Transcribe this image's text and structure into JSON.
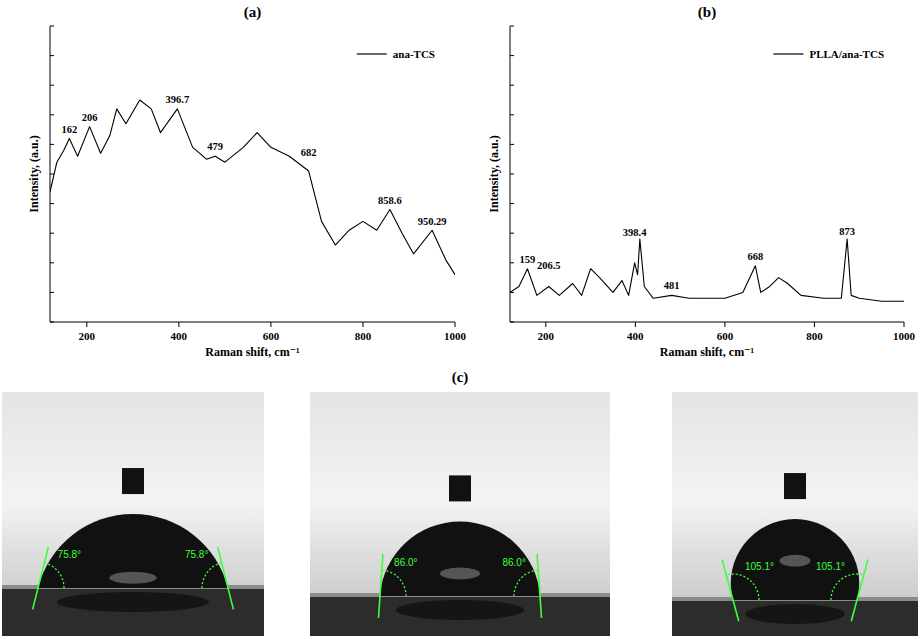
{
  "chart_data": [
    {
      "type": "line",
      "title": "(a)",
      "x_label": "Raman shift, cm⁻¹",
      "y_label": "Intensity, (a.u.)",
      "xlim": [
        120,
        1000
      ],
      "xticks": [
        200,
        400,
        600,
        800,
        1000
      ],
      "ylim": [
        0,
        100
      ],
      "yticks": [
        0,
        10,
        20,
        30,
        40,
        50,
        60,
        70,
        80,
        90,
        100
      ],
      "tick_labels": "x",
      "legend": "top-right",
      "series": [
        {
          "name": "ana-TCS",
          "color": "#000000",
          "x": [
            120,
            135,
            150,
            162,
            180,
            206,
            230,
            250,
            265,
            285,
            315,
            340,
            360,
            396.7,
            430,
            460,
            479,
            500,
            540,
            570,
            600,
            640,
            682,
            710,
            740,
            770,
            800,
            830,
            858.6,
            885,
            910,
            950.29,
            980,
            1000
          ],
          "values": [
            44,
            54,
            58,
            62,
            56,
            66,
            57,
            63,
            72,
            67,
            75,
            72,
            64,
            72,
            59,
            55,
            56,
            54,
            59,
            64,
            59,
            56,
            51,
            34,
            26,
            31,
            34,
            31,
            38,
            30,
            23,
            31,
            21,
            16
          ]
        }
      ],
      "annotations": [
        {
          "text": "162",
          "x": 162
        },
        {
          "text": "206",
          "x": 206
        },
        {
          "text": "396.7",
          "x": 396.7
        },
        {
          "text": "479",
          "x": 479
        },
        {
          "text": "682",
          "x": 682
        },
        {
          "text": "858.6",
          "x": 858.6
        },
        {
          "text": "950.29",
          "x": 950.29
        }
      ]
    },
    {
      "type": "line",
      "title": "(b)",
      "x_label": "Raman shift, cm⁻¹",
      "y_label": "Intensity, (a.u.)",
      "xlim": [
        120,
        1000
      ],
      "xticks": [
        200,
        400,
        600,
        800,
        1000
      ],
      "ylim": [
        0,
        100
      ],
      "yticks": [
        0,
        10,
        20,
        30,
        40,
        50,
        60,
        70,
        80,
        90,
        100
      ],
      "tick_labels": "x",
      "legend": "top-right",
      "series": [
        {
          "name": "PLLA/ana-TCS",
          "color": "#000000",
          "x": [
            120,
            140,
            159,
            180,
            206.5,
            230,
            260,
            280,
            300,
            320,
            350,
            370,
            385,
            398.4,
            405,
            410,
            420,
            440,
            481,
            520,
            560,
            600,
            640,
            668,
            680,
            700,
            720,
            740,
            770,
            820,
            860,
            873,
            882,
            900,
            950,
            1000
          ],
          "values": [
            10,
            12,
            18,
            9,
            12,
            9,
            13,
            9,
            18,
            15,
            10,
            14,
            9,
            20,
            16,
            28,
            12,
            8,
            9,
            8,
            8,
            8,
            10,
            19,
            10,
            12,
            15,
            13,
            9,
            8,
            8,
            28,
            9,
            8,
            7,
            7
          ]
        }
      ],
      "annotations": [
        {
          "text": "159",
          "x": 159
        },
        {
          "text": "206.5",
          "x": 206.5
        },
        {
          "text": "398.4",
          "x": 398.4
        },
        {
          "text": "481",
          "x": 481
        },
        {
          "text": "668",
          "x": 668
        },
        {
          "text": "873",
          "x": 873
        }
      ]
    }
  ],
  "photos": {
    "title": "(c)",
    "contact_angles": [
      {
        "value": 75.8,
        "label": "75.8°"
      },
      {
        "value": 86.0,
        "label": "86.0°"
      },
      {
        "value": 105.1,
        "label": "105.1°"
      }
    ]
  }
}
